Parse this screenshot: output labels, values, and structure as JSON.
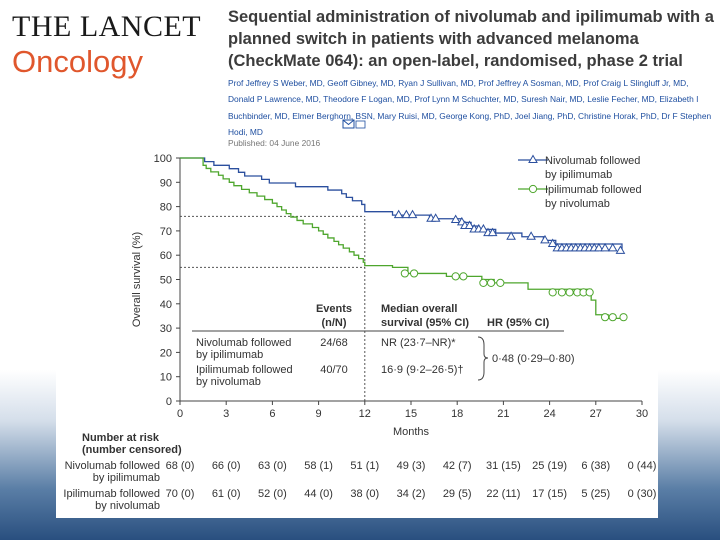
{
  "header": {
    "journal_title": "THE LANCET",
    "journal_subtitle": "Oncology",
    "paper_title": "Sequential administration of nivolumab and ipilimumab with a planned switch in patients with advanced melanoma (CheckMate 064): an open-label, randomised, phase 2 trial",
    "authors": "Prof Jeffrey S Weber, MD, Geoff Gibney, MD, Ryan J Sullivan, MD, Prof Jeffrey A Sosman, MD, Prof Craig L Slingluff Jr, MD, Donald P Lawrence, MD, Theodore F Logan, MD, Prof Lynn M Schuchter, MD, Suresh Nair, MD, Leslie Fecher, MD, Elizabeth I Buchbinder, MD, Elmer Berghorn, BSN, Mary Ruisi, MD, George Kong, PhD, Joel Jiang, PhD, Christine Horak, PhD, Dr F Stephen Hodi, MD",
    "published": "Published: 04 June 2016"
  },
  "colors": {
    "nivolumab": "#2b4f9e",
    "ipilimumab": "#4ea62d",
    "accent": "#e0572d"
  },
  "chart_data": {
    "type": "line",
    "title": "Overall survival",
    "xlabel": "Months",
    "ylabel": "Overall survival (%)",
    "xlim": [
      0,
      30
    ],
    "ylim": [
      0,
      100
    ],
    "xticks": [
      0,
      3,
      6,
      9,
      12,
      15,
      18,
      21,
      24,
      27,
      30
    ],
    "yticks": [
      0,
      10,
      20,
      30,
      40,
      50,
      60,
      70,
      80,
      90,
      100
    ],
    "reference_lines": {
      "x_month": 12,
      "y_nivolumab_12mo": 76,
      "y_ipilimumab_12mo": 55
    },
    "series": [
      {
        "name": "Nivolumab followed by ipilimumab",
        "legend_lines": [
          "Nivolumab followed",
          "by ipilimumab"
        ],
        "marker": "triangle",
        "steps": [
          [
            0,
            100
          ],
          [
            1.3,
            100
          ],
          [
            1.6,
            98.5
          ],
          [
            2.2,
            97
          ],
          [
            3.2,
            95.6
          ],
          [
            3.8,
            94.1
          ],
          [
            4.2,
            92.6
          ],
          [
            5.3,
            91.2
          ],
          [
            5.8,
            89.7
          ],
          [
            7.5,
            88.2
          ],
          [
            9.6,
            86.8
          ],
          [
            10.5,
            85.3
          ],
          [
            10.8,
            83.8
          ],
          [
            11.2,
            82.4
          ],
          [
            11.8,
            80.9
          ],
          [
            12,
            77.9
          ],
          [
            13.8,
            76.5
          ],
          [
            16.2,
            75
          ],
          [
            18.3,
            73.5
          ],
          [
            18.9,
            72
          ],
          [
            19.4,
            70.6
          ],
          [
            20.5,
            69.1
          ],
          [
            22.2,
            67.6
          ],
          [
            23.6,
            66.1
          ],
          [
            24.4,
            64.6
          ],
          [
            28.7,
            61.8
          ]
        ],
        "censored": [
          [
            14.2,
            76.5
          ],
          [
            14.7,
            76.5
          ],
          [
            15.1,
            76.5
          ],
          [
            16.3,
            75
          ],
          [
            16.6,
            75
          ],
          [
            17.9,
            74.5
          ],
          [
            18.3,
            73.5
          ],
          [
            18.5,
            72
          ],
          [
            18.8,
            72
          ],
          [
            19.1,
            70.6
          ],
          [
            19.4,
            70.6
          ],
          [
            19.7,
            70.6
          ],
          [
            20,
            69.1
          ],
          [
            20.3,
            69.1
          ],
          [
            21.5,
            67.6
          ],
          [
            22.8,
            67.6
          ],
          [
            23.7,
            66.1
          ],
          [
            24.2,
            64.6
          ],
          [
            24.5,
            62.8
          ],
          [
            24.8,
            62.8
          ],
          [
            25.1,
            62.8
          ],
          [
            25.4,
            62.8
          ],
          [
            25.7,
            62.8
          ],
          [
            26,
            62.8
          ],
          [
            26.3,
            62.8
          ],
          [
            26.6,
            62.8
          ],
          [
            26.9,
            62.8
          ],
          [
            27.2,
            62.8
          ],
          [
            27.6,
            62.8
          ],
          [
            28.1,
            62.8
          ],
          [
            28.6,
            61.8
          ]
        ],
        "events": "24/68",
        "median_os": "NR (23·7–NR)*",
        "table_label": [
          "Nivolumab followed",
          "by ipilimumab"
        ],
        "at_risk": [
          "68 (0)",
          "66 (0)",
          "63 (0)",
          "58 (1)",
          "51 (1)",
          "49 (3)",
          "42 (7)",
          "31 (15)",
          "25 (19)",
          "6 (38)",
          "0 (44)"
        ]
      },
      {
        "name": "Ipilimumab followed by nivolumab",
        "legend_lines": [
          "Ipilimumab followed",
          "by nivolumab"
        ],
        "marker": "circle",
        "steps": [
          [
            0,
            100
          ],
          [
            1.5,
            97
          ],
          [
            1.7,
            95.7
          ],
          [
            2,
            94.3
          ],
          [
            2.5,
            92.9
          ],
          [
            2.8,
            91.4
          ],
          [
            3.2,
            90
          ],
          [
            3.5,
            88.6
          ],
          [
            4,
            87.1
          ],
          [
            4.5,
            85.7
          ],
          [
            5,
            84.3
          ],
          [
            5.5,
            82.9
          ],
          [
            6,
            81.4
          ],
          [
            6.3,
            80
          ],
          [
            6.6,
            78.6
          ],
          [
            6.9,
            77.1
          ],
          [
            7.2,
            75.7
          ],
          [
            7.6,
            74.3
          ],
          [
            8,
            72.9
          ],
          [
            8.6,
            71.4
          ],
          [
            9,
            70
          ],
          [
            9.3,
            68.6
          ],
          [
            9.6,
            67.1
          ],
          [
            10,
            65.7
          ],
          [
            10.3,
            64.3
          ],
          [
            10.6,
            62.9
          ],
          [
            11,
            61.4
          ],
          [
            11.3,
            60
          ],
          [
            11.6,
            58.6
          ],
          [
            11.9,
            57.1
          ],
          [
            12,
            55.7
          ],
          [
            13.8,
            55
          ],
          [
            14.8,
            52.5
          ],
          [
            17.3,
            51.3
          ],
          [
            19.6,
            50
          ],
          [
            20.4,
            48.6
          ],
          [
            22.6,
            46
          ],
          [
            26.7,
            41.5
          ],
          [
            27,
            35.5
          ],
          [
            27.8,
            34
          ]
        ],
        "censored": [
          [
            14.6,
            52.5
          ],
          [
            15.2,
            52.5
          ],
          [
            17.9,
            51.3
          ],
          [
            18.4,
            51.3
          ],
          [
            19.7,
            48.6
          ],
          [
            20.2,
            48.6
          ],
          [
            20.8,
            48.6
          ],
          [
            24.2,
            44.7
          ],
          [
            24.8,
            44.7
          ],
          [
            25.3,
            44.7
          ],
          [
            25.8,
            44.7
          ],
          [
            26.2,
            44.7
          ],
          [
            26.6,
            44.7
          ],
          [
            27.6,
            34.5
          ],
          [
            28.1,
            34.5
          ],
          [
            28.8,
            34.5
          ]
        ],
        "events": "40/70",
        "median_os": "16·9 (9·2–26·5)†",
        "table_label": [
          "Ipilimumab followed",
          "by nivolumab"
        ],
        "at_risk": [
          "70 (0)",
          "61 (0)",
          "52 (0)",
          "44 (0)",
          "38 (0)",
          "34 (2)",
          "29 (5)",
          "22 (11)",
          "17 (15)",
          "5 (25)",
          "0 (30)"
        ]
      }
    ],
    "inset_table": {
      "events_header": [
        "Events",
        "(n/N)"
      ],
      "median_header": [
        "Median overall",
        "survival (95% CI)"
      ],
      "hr_header": "HR (95% CI)",
      "hr_value": "0·48 (0·29–0·80)"
    },
    "risk_table_title": [
      "Number at risk",
      "(number censored)"
    ]
  }
}
